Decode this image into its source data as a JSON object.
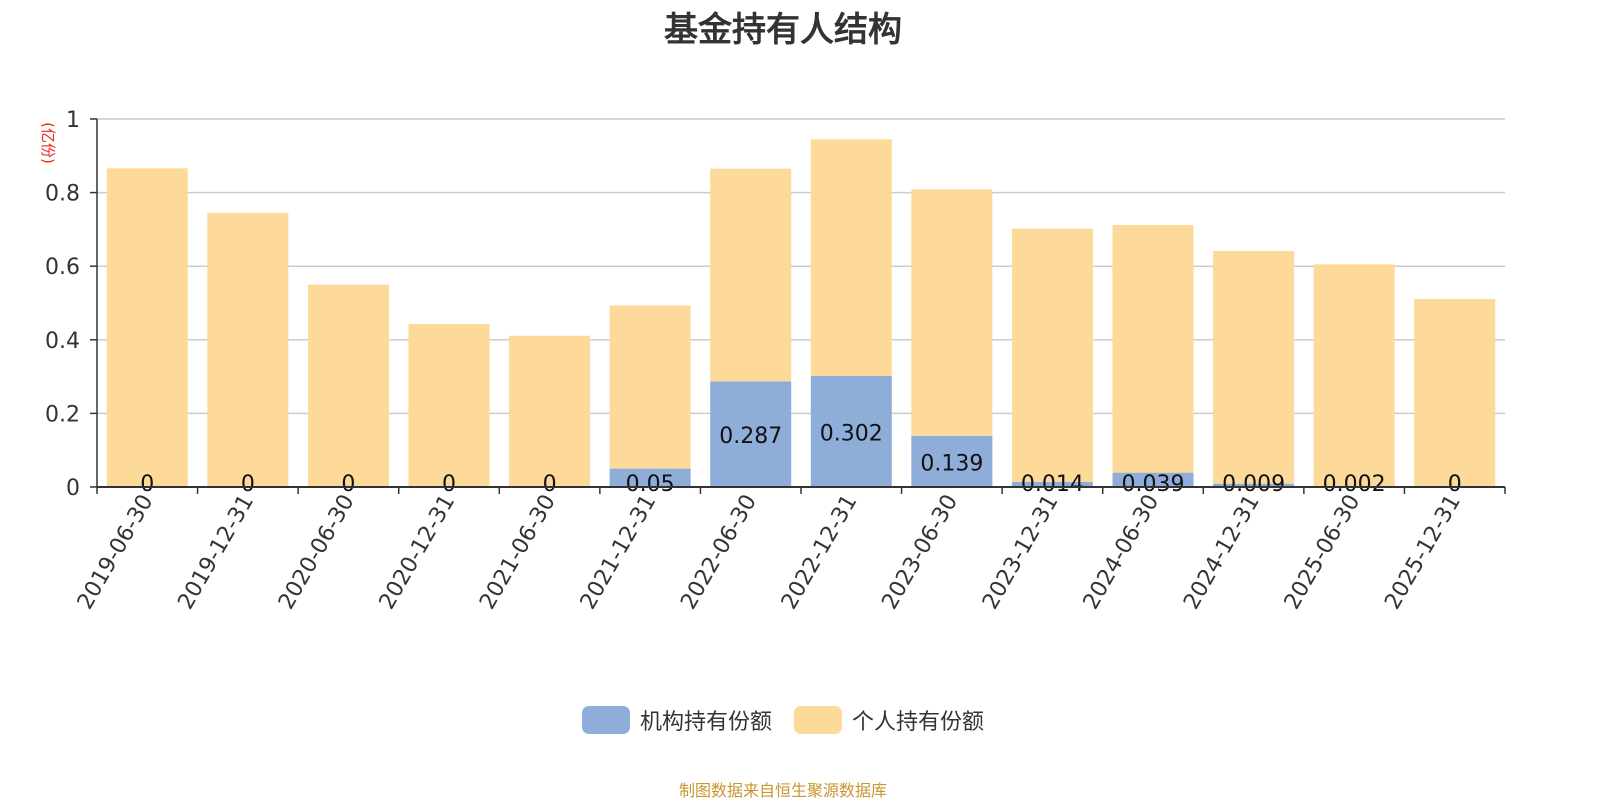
{
  "chart_data": {
    "type": "bar",
    "stacked": true,
    "title": "基金持有人结构",
    "unit_label": "(亿份)",
    "categories": [
      "2019-06-30",
      "2019-12-31",
      "2020-06-30",
      "2020-12-31",
      "2021-06-30",
      "2021-12-31",
      "2022-06-30",
      "2022-12-31",
      "2023-06-30",
      "2023-12-31",
      "2024-06-30",
      "2024-12-31",
      "2025-06-30",
      "2025-12-31"
    ],
    "series": [
      {
        "name": "机构持有份额",
        "color": "#8eadd9",
        "values": [
          0,
          0,
          0,
          0,
          0,
          0.05,
          0.287,
          0.302,
          0.139,
          0.014,
          0.039,
          0.009,
          0.002,
          0
        ],
        "labels": [
          "0",
          "0",
          "0",
          "0",
          "0",
          "0.05",
          "0.287",
          "0.302",
          "0.139",
          "0.014",
          "0.039",
          "0.009",
          "0.002",
          "0"
        ]
      },
      {
        "name": "个人持有份额",
        "color": "#fdd99a",
        "values": [
          0.866,
          0.745,
          0.55,
          0.443,
          0.411,
          0.443,
          0.578,
          0.643,
          0.67,
          0.688,
          0.673,
          0.632,
          0.603,
          0.511
        ]
      }
    ],
    "yticks": [
      0,
      0.2,
      0.4,
      0.6,
      0.8,
      1
    ],
    "ylim": [
      0,
      1
    ],
    "grid": true,
    "legend_position": "bottom"
  },
  "footer": {
    "source": "制图数据来自恒生聚源数据库"
  }
}
